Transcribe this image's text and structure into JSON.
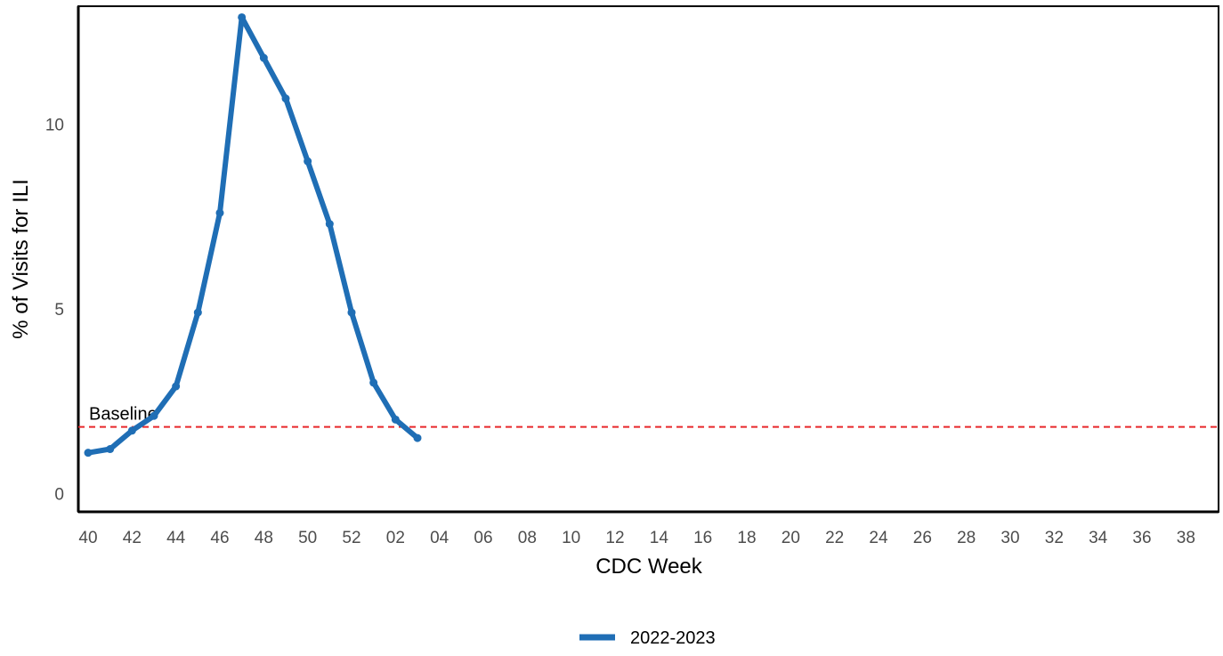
{
  "chart_data": {
    "type": "line",
    "title": "",
    "xlabel": "CDC Week",
    "ylabel": "% of Visits for ILI",
    "ylim": [
      -0.5,
      13.2
    ],
    "grid": false,
    "legend_position": "bottom",
    "x_ticks": [
      "40",
      "42",
      "44",
      "46",
      "48",
      "50",
      "52",
      "02",
      "04",
      "06",
      "08",
      "10",
      "12",
      "14",
      "16",
      "18",
      "20",
      "22",
      "24",
      "26",
      "28",
      "30",
      "32",
      "34",
      "36",
      "38"
    ],
    "y_ticks": [
      0,
      5,
      10
    ],
    "weeks": [
      "40",
      "41",
      "42",
      "43",
      "44",
      "45",
      "46",
      "47",
      "48",
      "49",
      "50",
      "51",
      "52",
      "01",
      "02",
      "03",
      "04",
      "05",
      "06",
      "07",
      "08",
      "09",
      "10",
      "11",
      "12",
      "13",
      "14",
      "15",
      "16",
      "17",
      "18",
      "19",
      "20",
      "21",
      "22",
      "23",
      "24",
      "25",
      "26",
      "27",
      "28",
      "29",
      "30",
      "31",
      "32",
      "33",
      "34",
      "35",
      "36",
      "37",
      "38",
      "39"
    ],
    "series": [
      {
        "name": "2022-2023",
        "color": "#1f6eb5",
        "values": [
          1.1,
          1.2,
          1.7,
          2.1,
          2.9,
          4.9,
          7.6,
          12.9,
          11.8,
          10.7,
          9.0,
          7.3,
          4.9,
          3.0,
          2.0,
          1.5
        ]
      }
    ],
    "reference_line": {
      "label": "Baseline",
      "value": 1.8,
      "color": "#e8282b",
      "style": "dashed"
    }
  }
}
